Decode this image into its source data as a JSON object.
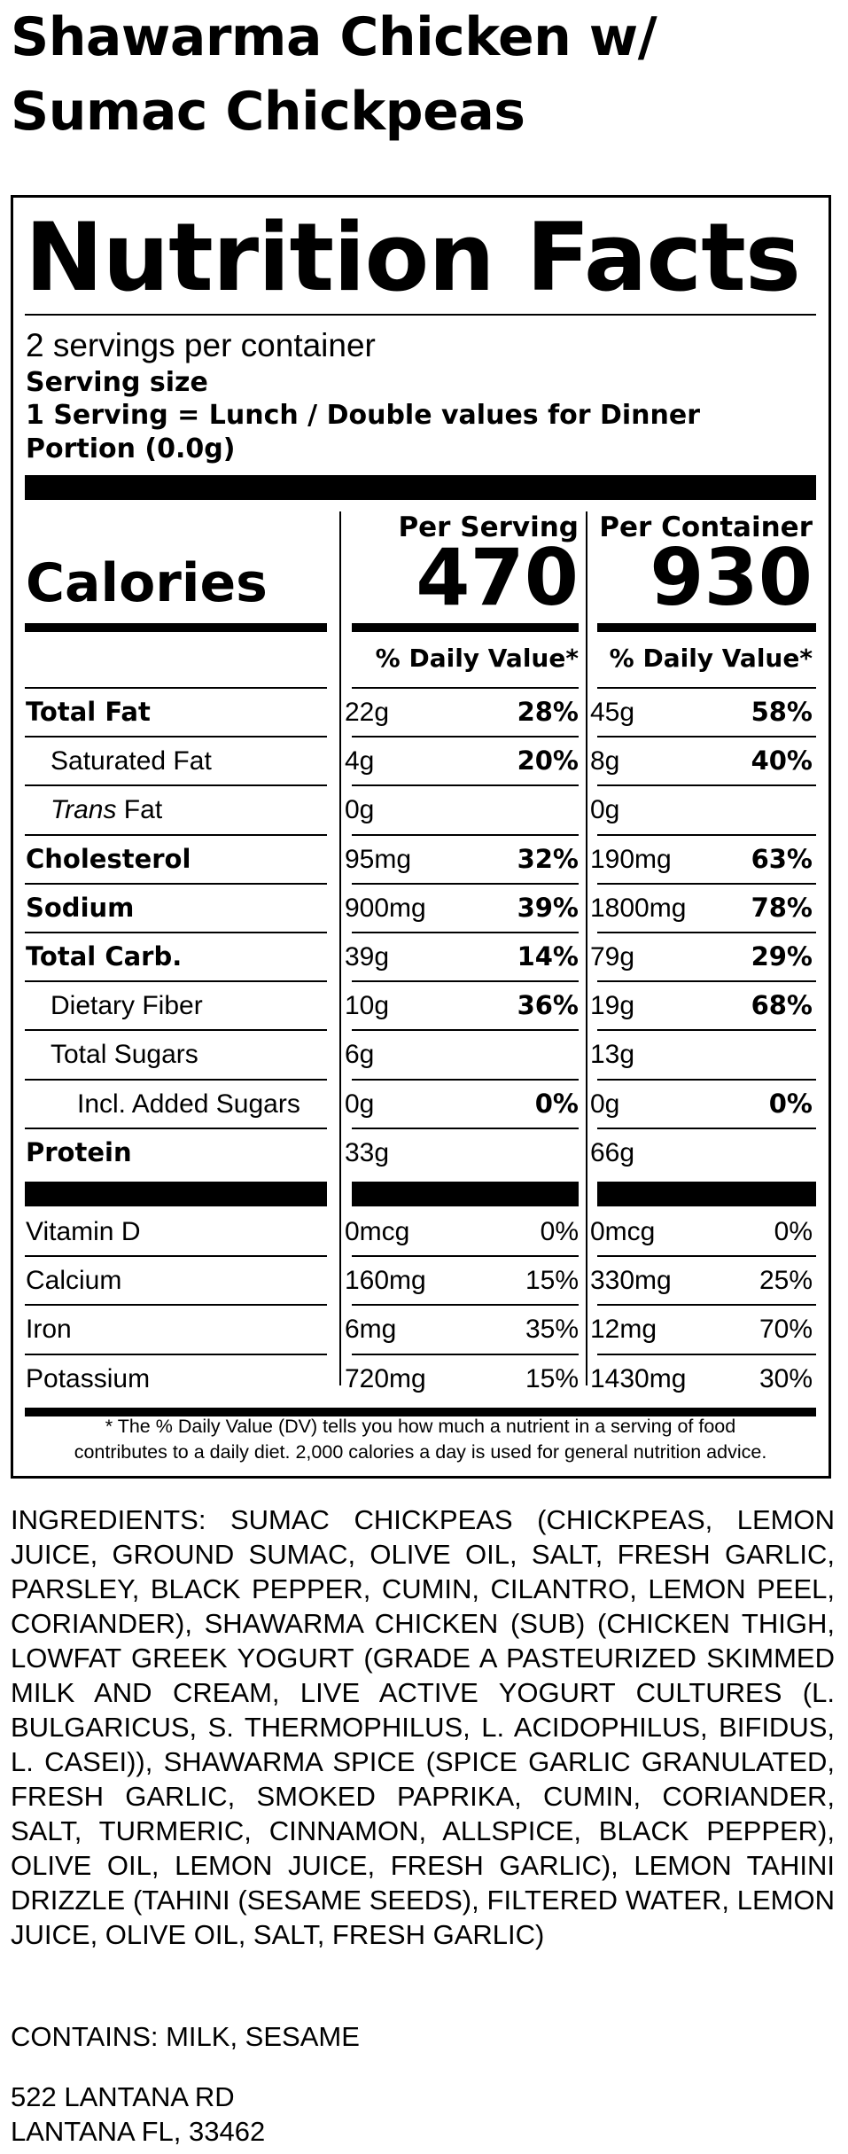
{
  "product_title": "Shawarma Chicken w/ Sumac Chickpeas",
  "label": {
    "heading": "Nutrition Facts",
    "servings_per_container": "2 servings per container",
    "serving_size_label": "Serving size",
    "serving_size_line1": "1 Serving = Lunch / Double values for Dinner",
    "serving_size_line2": "Portion (0.0g)",
    "per_serving_header": "Per Serving",
    "per_container_header": "Per Container",
    "calories_label": "Calories",
    "calories_per_serving": "470",
    "calories_per_container": "930",
    "daily_value_header": "% Daily Value*",
    "nutrients": [
      {
        "name": "Total Fat",
        "serving_amount": "22g",
        "serving_dv": "28%",
        "container_amount": "45g",
        "container_dv": "58%"
      },
      {
        "name": "Saturated Fat",
        "serving_amount": "4g",
        "serving_dv": "20%",
        "container_amount": "8g",
        "container_dv": "40%"
      },
      {
        "name_italic": "Trans",
        "name_rest": " Fat",
        "serving_amount": "0g",
        "serving_dv": "",
        "container_amount": "0g",
        "container_dv": ""
      },
      {
        "name": "Cholesterol",
        "serving_amount": "95mg",
        "serving_dv": "32%",
        "container_amount": "190mg",
        "container_dv": "63%"
      },
      {
        "name": "Sodium",
        "serving_amount": "900mg",
        "serving_dv": "39%",
        "container_amount": "1800mg",
        "container_dv": "78%"
      },
      {
        "name": "Total Carb.",
        "serving_amount": "39g",
        "serving_dv": "14%",
        "container_amount": "79g",
        "container_dv": "29%"
      },
      {
        "name": "Dietary Fiber",
        "serving_amount": "10g",
        "serving_dv": "36%",
        "container_amount": "19g",
        "container_dv": "68%"
      },
      {
        "name": "Total Sugars",
        "serving_amount": "6g",
        "serving_dv": "",
        "container_amount": "13g",
        "container_dv": ""
      },
      {
        "name": "Incl. Added Sugars",
        "serving_amount": "0g",
        "serving_dv": "0%",
        "container_amount": "0g",
        "container_dv": "0%"
      },
      {
        "name": "Protein",
        "serving_amount": "33g",
        "serving_dv": "",
        "container_amount": "66g",
        "container_dv": ""
      }
    ],
    "vitamins": [
      {
        "name": "Vitamin D",
        "serving_amount": "0mcg",
        "serving_dv": "0%",
        "container_amount": "0mcg",
        "container_dv": "0%"
      },
      {
        "name": "Calcium",
        "serving_amount": "160mg",
        "serving_dv": "15%",
        "container_amount": "330mg",
        "container_dv": "25%"
      },
      {
        "name": "Iron",
        "serving_amount": "6mg",
        "serving_dv": "35%",
        "container_amount": "12mg",
        "container_dv": "70%"
      },
      {
        "name": "Potassium",
        "serving_amount": "720mg",
        "serving_dv": "15%",
        "container_amount": "1430mg",
        "container_dv": "30%"
      }
    ],
    "footnote_line1": "* The % Daily Value (DV) tells you how much a nutrient in a serving of food",
    "footnote_line2": "contributes to a daily diet. 2,000 calories a day is used for general nutrition advice."
  },
  "ingredients": "INGREDIENTS: SUMAC CHICKPEAS (CHICKPEAS, LEMON JUICE, GROUND SUMAC, OLIVE OIL, SALT, FRESH GARLIC, PARSLEY, BLACK PEPPER, CUMIN, CILANTRO, LEMON PEEL, CORIANDER), SHAWARMA CHICKEN (SUB) (CHICKEN THIGH, LOWFAT GREEK YOGURT (GRADE A PASTEURIZED SKIMMED MILK AND CREAM, LIVE ACTIVE YOGURT CULTURES (L. BULGARICUS, S. THERMOPHILUS, L. ACIDOPHILUS, BIFIDUS, L. CASEI)), SHAWARMA SPICE (SPICE GARLIC GRANULATED, FRESH GARLIC, SMOKED PAPRIKA, CUMIN, CORIANDER, SALT, TURMERIC, CINNAMON, ALLSPICE, BLACK PEPPER), OLIVE OIL, LEMON JUICE, FRESH GARLIC), LEMON TAHINI DRIZZLE (TAHINI (SESAME SEEDS), FILTERED WATER, LEMON JUICE, OLIVE OIL, SALT, FRESH GARLIC)",
  "contains": "CONTAINS: MILK, SESAME",
  "address": {
    "line1": "522 LANTANA RD",
    "line2": "LANTANA FL, 33462"
  }
}
